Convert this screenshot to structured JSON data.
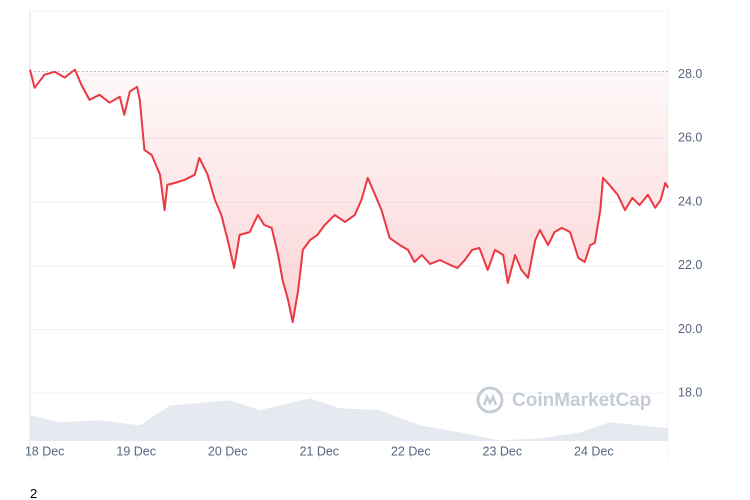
{
  "chart_data": {
    "type": "line",
    "x": [
      -0.16,
      -0.11,
      0,
      0.11,
      0.22,
      0.33,
      0.4,
      0.49,
      0.6,
      0.71,
      0.82,
      0.87,
      0.93,
      1.01,
      1.04,
      1.09,
      1.17,
      1.26,
      1.31,
      1.34,
      1.42,
      1.53,
      1.64,
      1.69,
      1.78,
      1.86,
      1.93,
      2.0,
      2.07,
      2.13,
      2.24,
      2.33,
      2.4,
      2.48,
      2.55,
      2.6,
      2.66,
      2.71,
      2.77,
      2.82,
      2.9,
      2.98,
      3.06,
      3.17,
      3.28,
      3.39,
      3.46,
      3.53,
      3.61,
      3.68,
      3.77,
      3.88,
      3.97,
      4.04,
      4.12,
      4.21,
      4.32,
      4.43,
      4.51,
      4.59,
      4.67,
      4.75,
      4.84,
      4.92,
      5.01,
      5.06,
      5.14,
      5.21,
      5.28,
      5.36,
      5.41,
      5.5,
      5.57,
      5.65,
      5.74,
      5.83,
      5.9,
      5.96,
      6.01,
      6.07,
      6.1,
      6.17,
      6.26,
      6.34,
      6.42,
      6.5,
      6.59,
      6.67,
      6.73,
      6.78,
      6.81
    ],
    "values": [
      28.16,
      27.59,
      28.0,
      28.09,
      27.91,
      28.16,
      27.69,
      27.21,
      27.37,
      27.12,
      27.31,
      26.74,
      27.47,
      27.62,
      27.21,
      25.64,
      25.48,
      24.86,
      23.75,
      24.54,
      24.6,
      24.7,
      24.86,
      25.39,
      24.86,
      24.07,
      23.6,
      22.81,
      21.93,
      22.97,
      23.06,
      23.6,
      23.28,
      23.19,
      22.34,
      21.55,
      20.92,
      20.23,
      21.24,
      22.5,
      22.81,
      22.97,
      23.28,
      23.6,
      23.38,
      23.6,
      24.07,
      24.76,
      24.23,
      23.75,
      22.87,
      22.65,
      22.5,
      22.12,
      22.34,
      22.06,
      22.18,
      22.03,
      21.93,
      22.18,
      22.5,
      22.56,
      21.87,
      22.5,
      22.34,
      21.46,
      22.34,
      21.87,
      21.62,
      22.81,
      23.12,
      22.65,
      23.06,
      23.19,
      23.06,
      22.25,
      22.12,
      22.65,
      22.72,
      23.75,
      24.76,
      24.54,
      24.23,
      23.75,
      24.13,
      23.91,
      24.23,
      23.82,
      24.07,
      24.6,
      24.45
    ],
    "color": "#ea3943",
    "baseline": 28.1,
    "volume": {
      "color": "#e6e9ef",
      "x": [
        -0.16,
        0.16,
        0.6,
        1.04,
        1.37,
        2.02,
        2.35,
        2.9,
        3.22,
        3.66,
        4.1,
        4.54,
        4.97,
        5.41,
        5.85,
        6.17,
        6.5,
        6.81
      ],
      "values": [
        17.31,
        17.09,
        17.15,
        16.99,
        17.62,
        17.78,
        17.47,
        17.84,
        17.53,
        17.47,
        16.99,
        16.77,
        16.52,
        16.58,
        16.77,
        17.09,
        16.99,
        16.9
      ]
    },
    "xlim": [
      -0.16,
      6.81
    ],
    "xticks": [
      {
        "value": 0,
        "label": "18 Dec"
      },
      {
        "value": 1,
        "label": "19 Dec"
      },
      {
        "value": 2,
        "label": "20 Dec"
      },
      {
        "value": 3,
        "label": "21 Dec"
      },
      {
        "value": 4,
        "label": "22 Dec"
      },
      {
        "value": 5,
        "label": "23 Dec"
      },
      {
        "value": 6,
        "label": "24 Dec"
      }
    ],
    "ylim": [
      16.5,
      30
    ],
    "yticks": [
      {
        "value": 18,
        "label": "18.0"
      },
      {
        "value": 20,
        "label": "20.0"
      },
      {
        "value": 22,
        "label": "22.0"
      },
      {
        "value": 24,
        "label": "24.0"
      },
      {
        "value": 26,
        "label": "26.0"
      },
      {
        "value": 28,
        "label": "28.0"
      }
    ],
    "grid": true,
    "watermark": "CoinMarketCap"
  },
  "footer_text": "2"
}
